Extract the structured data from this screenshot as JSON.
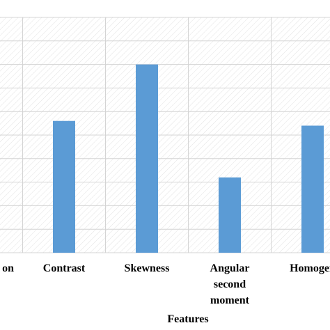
{
  "chart_data": {
    "type": "bar",
    "x_label": "Features",
    "categories": [
      "on",
      "Contrast",
      "Skewness",
      "Angular second moment",
      "Homogen"
    ],
    "values": [
      null,
      5.6,
      8,
      3.2,
      5.4
    ],
    "color": "#5b9bd5",
    "ylim": [
      0,
      10
    ],
    "yticks": [
      0,
      1,
      2,
      3,
      4,
      5,
      6,
      7,
      8,
      9,
      10
    ],
    "grid": true
  }
}
